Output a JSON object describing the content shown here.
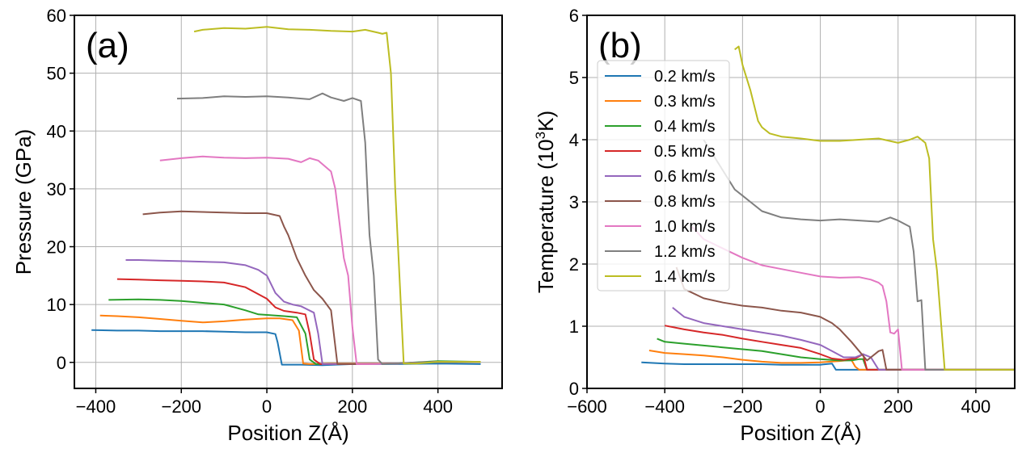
{
  "chart_data": [
    {
      "type": "line",
      "panel_label": "(a)",
      "xlabel": "Position Z(Å)",
      "ylabel": "Pressure (GPa)",
      "xlim": [
        -450,
        550
      ],
      "ylim": [
        -4.5,
        60
      ],
      "xticks": [
        -400,
        -200,
        0,
        200,
        400
      ],
      "xtick_labels": [
        "−400",
        "−200",
        "0",
        "200",
        "400"
      ],
      "yticks": [
        0,
        10,
        20,
        30,
        40,
        50,
        60
      ],
      "ytick_labels": [
        "0",
        "10",
        "20",
        "30",
        "40",
        "50",
        "60"
      ],
      "grid": true,
      "series": [
        {
          "name": "0.2 km/s",
          "color": "#1f77b4",
          "x": [
            -410,
            -350,
            -300,
            -250,
            -200,
            -150,
            -100,
            -50,
            0,
            20,
            25,
            35,
            80,
            130,
            200,
            300,
            400,
            500
          ],
          "y": [
            5.6,
            5.5,
            5.5,
            5.4,
            5.4,
            5.4,
            5.3,
            5.2,
            5.2,
            4.9,
            3.5,
            -0.4,
            -0.4,
            -0.5,
            -0.3,
            -0.3,
            -0.2,
            -0.3
          ]
        },
        {
          "name": "0.3 km/s",
          "color": "#ff7f0e",
          "x": [
            -390,
            -350,
            -300,
            -250,
            -200,
            -150,
            -100,
            -50,
            0,
            30,
            60,
            75,
            85,
            100,
            150,
            200,
            300,
            400,
            500
          ],
          "y": [
            8.1,
            8.0,
            7.8,
            7.5,
            7.2,
            6.9,
            7.1,
            7.4,
            7.6,
            7.6,
            7.3,
            5.5,
            -0.2,
            -0.3,
            -0.2,
            -0.2,
            -0.2,
            0.1,
            0.1
          ]
        },
        {
          "name": "0.4 km/s",
          "color": "#2ca02c",
          "x": [
            -370,
            -300,
            -250,
            -200,
            -150,
            -100,
            -50,
            -20,
            0,
            40,
            70,
            90,
            100,
            115,
            150,
            200,
            300,
            400,
            500
          ],
          "y": [
            10.8,
            10.9,
            10.8,
            10.6,
            10.3,
            10.0,
            9.0,
            8.3,
            8.2,
            8.0,
            7.8,
            5.0,
            0.5,
            -0.3,
            -0.3,
            -0.3,
            -0.2,
            0.2,
            0.1
          ]
        },
        {
          "name": "0.5 km/s",
          "color": "#d62728",
          "x": [
            -350,
            -300,
            -250,
            -200,
            -150,
            -100,
            -50,
            0,
            20,
            40,
            70,
            90,
            100,
            110,
            125,
            150,
            200,
            300,
            400,
            500
          ],
          "y": [
            14.4,
            14.3,
            14.2,
            14.1,
            14.0,
            13.8,
            13.0,
            11.0,
            9.5,
            8.9,
            8.6,
            8.3,
            5.0,
            0.5,
            -0.3,
            -0.3,
            -0.3,
            -0.2,
            0.1,
            0.1
          ]
        },
        {
          "name": "0.6 km/s",
          "color": "#9467bd",
          "x": [
            -330,
            -300,
            -250,
            -200,
            -150,
            -100,
            -50,
            -20,
            0,
            20,
            40,
            60,
            80,
            110,
            120,
            130,
            150,
            200,
            300,
            400,
            500
          ],
          "y": [
            17.7,
            17.7,
            17.6,
            17.5,
            17.4,
            17.3,
            16.8,
            16.0,
            15.0,
            12.0,
            10.5,
            10.0,
            9.7,
            8.6,
            5.0,
            -0.3,
            -0.3,
            -0.3,
            -0.2,
            0.1,
            0.1
          ]
        },
        {
          "name": "0.8 km/s",
          "color": "#8c564b",
          "x": [
            -290,
            -250,
            -200,
            -150,
            -100,
            -50,
            0,
            30,
            40,
            50,
            70,
            90,
            110,
            130,
            150,
            165,
            200,
            300,
            400,
            500
          ],
          "y": [
            25.6,
            25.9,
            26.1,
            26.0,
            25.9,
            25.8,
            25.8,
            25.3,
            23.5,
            22.0,
            18.0,
            15.0,
            12.5,
            11.0,
            9.0,
            -0.3,
            -0.3,
            -0.2,
            0.1,
            0.1
          ]
        },
        {
          "name": "1.0 km/s",
          "color": "#e377c2",
          "x": [
            -250,
            -200,
            -150,
            -100,
            -50,
            0,
            50,
            80,
            100,
            120,
            150,
            160,
            180,
            190,
            200,
            210,
            250,
            300,
            400,
            500
          ],
          "y": [
            34.9,
            35.3,
            35.6,
            35.4,
            35.3,
            35.4,
            35.2,
            34.6,
            35.3,
            34.9,
            33.0,
            30.0,
            18.0,
            15.0,
            6.0,
            -0.3,
            -0.3,
            -0.2,
            0.1,
            0.1
          ]
        },
        {
          "name": "1.2 km/s",
          "color": "#7f7f7f",
          "x": [
            -210,
            -150,
            -100,
            -50,
            0,
            50,
            100,
            130,
            150,
            180,
            200,
            220,
            230,
            240,
            250,
            260,
            270,
            300,
            400,
            500
          ],
          "y": [
            45.6,
            45.7,
            46.0,
            45.9,
            46.0,
            45.8,
            45.5,
            46.5,
            45.8,
            45.2,
            45.7,
            45.2,
            38.0,
            22.0,
            15.0,
            0.5,
            -0.3,
            -0.2,
            0.1,
            0.1
          ]
        },
        {
          "name": "1.4 km/s",
          "color": "#bcbd22",
          "x": [
            -170,
            -150,
            -100,
            -50,
            0,
            50,
            100,
            150,
            200,
            230,
            260,
            270,
            280,
            290,
            300,
            320,
            350,
            400,
            500
          ],
          "y": [
            57.2,
            57.5,
            57.8,
            57.7,
            58.0,
            57.6,
            57.5,
            57.3,
            57.2,
            57.5,
            57.0,
            56.8,
            57.0,
            50.0,
            30.0,
            -0.2,
            -0.2,
            0.1,
            0.1
          ]
        }
      ]
    },
    {
      "type": "line",
      "panel_label": "(b)",
      "xlabel": "Position Z(Å)",
      "ylabel_main": "Temperature (10",
      "ylabel_sup": "3",
      "ylabel_tail": "K)",
      "xlim": [
        -600,
        500
      ],
      "ylim": [
        0,
        6
      ],
      "xticks": [
        -600,
        -400,
        -200,
        0,
        200,
        400
      ],
      "xtick_labels": [
        "−600",
        "−400",
        "−200",
        "0",
        "200",
        "400"
      ],
      "yticks": [
        0,
        1,
        2,
        3,
        4,
        5,
        6
      ],
      "ytick_labels": [
        "0",
        "1",
        "2",
        "3",
        "4",
        "5",
        "6"
      ],
      "grid": true,
      "legend": "upper-left",
      "series": [
        {
          "name": "0.2 km/s",
          "color": "#1f77b4",
          "x": [
            -460,
            -400,
            -350,
            -300,
            -250,
            -200,
            -150,
            -100,
            -50,
            0,
            30,
            40,
            60,
            100,
            200,
            300,
            400,
            500
          ],
          "y": [
            0.42,
            0.4,
            0.39,
            0.39,
            0.39,
            0.39,
            0.39,
            0.38,
            0.38,
            0.38,
            0.4,
            0.3,
            0.3,
            0.3,
            0.3,
            0.3,
            0.3,
            0.3
          ]
        },
        {
          "name": "0.3 km/s",
          "color": "#ff7f0e",
          "x": [
            -440,
            -400,
            -350,
            -300,
            -250,
            -200,
            -150,
            -100,
            -50,
            0,
            50,
            80,
            90,
            100,
            150,
            200,
            300,
            400,
            500
          ],
          "y": [
            0.61,
            0.57,
            0.55,
            0.53,
            0.5,
            0.46,
            0.43,
            0.41,
            0.41,
            0.42,
            0.44,
            0.46,
            0.35,
            0.3,
            0.3,
            0.3,
            0.3,
            0.3,
            0.3
          ]
        },
        {
          "name": "0.4 km/s",
          "color": "#2ca02c",
          "x": [
            -420,
            -400,
            -350,
            -300,
            -250,
            -200,
            -150,
            -100,
            -50,
            0,
            50,
            80,
            100,
            110,
            120,
            150,
            200,
            300,
            400,
            500
          ],
          "y": [
            0.8,
            0.75,
            0.72,
            0.69,
            0.66,
            0.63,
            0.6,
            0.55,
            0.5,
            0.47,
            0.45,
            0.45,
            0.47,
            0.47,
            0.3,
            0.3,
            0.3,
            0.3,
            0.3,
            0.3
          ]
        },
        {
          "name": "0.5 km/s",
          "color": "#d62728",
          "x": [
            -400,
            -350,
            -300,
            -250,
            -200,
            -150,
            -100,
            -50,
            0,
            30,
            60,
            90,
            110,
            120,
            130,
            150,
            200,
            300,
            400,
            500
          ],
          "y": [
            1.01,
            0.95,
            0.9,
            0.86,
            0.8,
            0.75,
            0.7,
            0.65,
            0.55,
            0.48,
            0.46,
            0.48,
            0.55,
            0.3,
            0.3,
            0.3,
            0.3,
            0.3,
            0.3,
            0.3
          ]
        },
        {
          "name": "0.6 km/s",
          "color": "#9467bd",
          "x": [
            -380,
            -350,
            -300,
            -250,
            -200,
            -150,
            -100,
            -50,
            0,
            30,
            60,
            90,
            110,
            130,
            140,
            150,
            200,
            300,
            400,
            500
          ],
          "y": [
            1.3,
            1.15,
            1.05,
            1.0,
            0.95,
            0.9,
            0.85,
            0.78,
            0.7,
            0.6,
            0.5,
            0.5,
            0.55,
            0.5,
            0.4,
            0.3,
            0.3,
            0.3,
            0.3,
            0.3
          ]
        },
        {
          "name": "0.8 km/s",
          "color": "#8c564b",
          "x": [
            -370,
            -350,
            -300,
            -250,
            -200,
            -150,
            -100,
            -50,
            0,
            30,
            50,
            80,
            100,
            120,
            150,
            160,
            170,
            200,
            300,
            400,
            500
          ],
          "y": [
            1.95,
            1.6,
            1.45,
            1.38,
            1.33,
            1.3,
            1.25,
            1.22,
            1.15,
            1.05,
            0.95,
            0.75,
            0.6,
            0.45,
            0.6,
            0.62,
            0.3,
            0.3,
            0.3,
            0.3,
            0.3
          ]
        },
        {
          "name": "1.0 km/s",
          "color": "#e377c2",
          "x": [
            -330,
            -300,
            -250,
            -200,
            -150,
            -100,
            -50,
            0,
            50,
            100,
            130,
            150,
            160,
            170,
            180,
            190,
            200,
            210,
            300,
            400,
            500
          ],
          "y": [
            2.6,
            2.4,
            2.25,
            2.1,
            1.98,
            1.92,
            1.86,
            1.8,
            1.78,
            1.79,
            1.75,
            1.7,
            1.65,
            1.4,
            0.9,
            0.88,
            0.95,
            0.3,
            0.3,
            0.3,
            0.3
          ]
        },
        {
          "name": "1.2 km/s",
          "color": "#7f7f7f",
          "x": [
            -300,
            -280,
            -250,
            -220,
            -200,
            -180,
            -150,
            -100,
            -50,
            0,
            50,
            100,
            150,
            180,
            200,
            230,
            240,
            250,
            260,
            270,
            300,
            400,
            500
          ],
          "y": [
            4.0,
            3.8,
            3.5,
            3.2,
            3.1,
            3.0,
            2.85,
            2.75,
            2.72,
            2.7,
            2.72,
            2.7,
            2.68,
            2.75,
            2.7,
            2.6,
            2.2,
            1.4,
            1.42,
            0.3,
            0.3,
            0.3,
            0.3
          ]
        },
        {
          "name": "1.4 km/s",
          "color": "#bcbd22",
          "x": [
            -220,
            -210,
            -200,
            -180,
            -160,
            -150,
            -130,
            -100,
            -50,
            0,
            50,
            100,
            150,
            200,
            230,
            250,
            270,
            280,
            290,
            300,
            320,
            400,
            500
          ],
          "y": [
            5.45,
            5.5,
            5.2,
            4.8,
            4.3,
            4.2,
            4.1,
            4.05,
            4.02,
            3.98,
            3.98,
            4.0,
            4.02,
            3.95,
            4.0,
            4.05,
            3.95,
            3.7,
            2.4,
            1.9,
            0.3,
            0.3,
            0.3
          ]
        }
      ]
    }
  ]
}
